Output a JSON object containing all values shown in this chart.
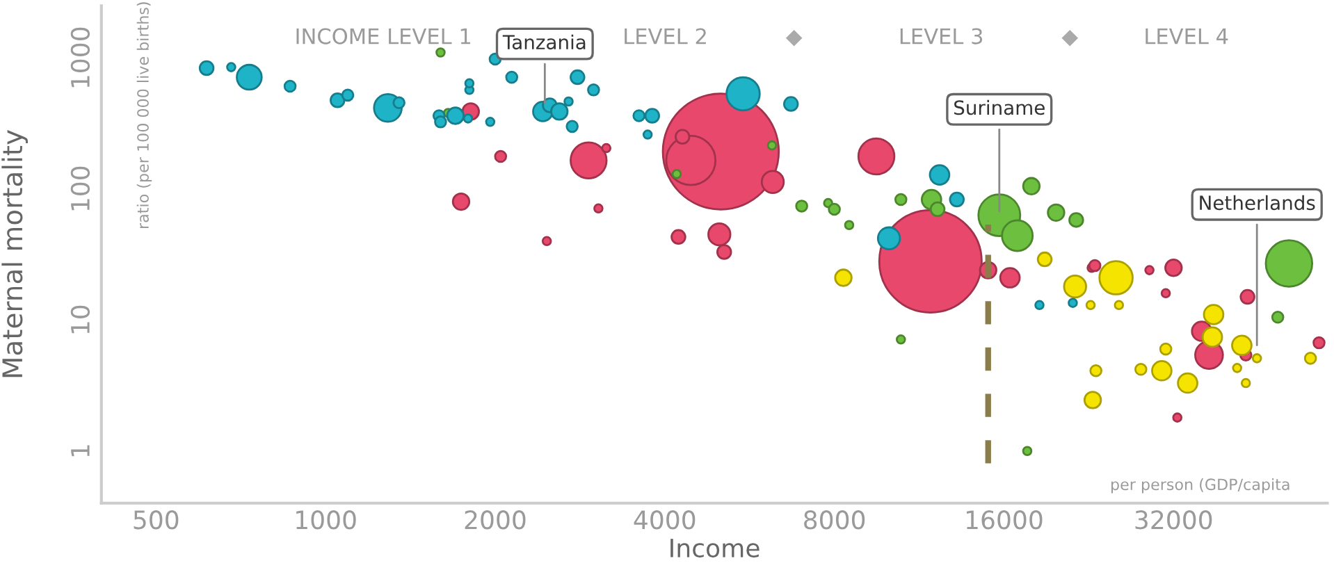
{
  "chart_data": {
    "type": "bubble",
    "xlabel": "Income",
    "ylabel": "Maternal mortality",
    "log": "xy",
    "xlim": [
      400,
      60000
    ],
    "ylim": [
      0.4,
      2500
    ],
    "xticks": [
      500,
      1000,
      2000,
      4000,
      8000,
      16000,
      32000
    ],
    "yticks": [
      1,
      10,
      100,
      1000
    ],
    "grid": false,
    "legend": false,
    "marker": "circle",
    "annotations": [
      "INCOME LEVEL 1",
      "LEVEL 2",
      "LEVEL 3",
      "LEVEL 4",
      "ratio (per 100 000 live births)",
      "per person (GDP/capita",
      {
        "text": "Tanzania",
        "x": 2450,
        "y": 420
      },
      {
        "text": "Suriname",
        "x": 15700,
        "y": 63
      },
      {
        "text": "Netherlands",
        "x": 45000,
        "y": 6
      }
    ],
    "ref_lines": [
      {
        "axis": "x",
        "value": 15000,
        "label": null,
        "color": "#8b7d4a",
        "line_style": "dashed"
      }
    ],
    "series": [
      {
        "color": "#e8486b",
        "x": [
          5030,
          11850,
          4450,
          2930,
          9500,
          1810,
          2045,
          1740,
          3150,
          3050,
          2470,
          4300,
          4230,
          5000,
          5100,
          6220,
          15000,
          16400,
          22900,
          23200,
          32000,
          35900,
          37000,
          43300,
          43000,
          31000,
          58000,
          29000,
          32500
        ],
        "values": [
          193,
          28,
          165,
          165,
          177,
          390,
          177,
          80,
          205,
          71,
          40,
          250,
          43,
          45,
          33,
          113,
          24,
          21,
          25,
          26,
          25,
          8.2,
          5.4,
          15,
          5.4,
          16,
          6.7,
          24,
          1.8
        ],
        "sizes": [
          1,
          0.78,
          0.18,
          0.096,
          0.096,
          0.02,
          0.009,
          0.02,
          0.005,
          0.005,
          0.005,
          0.014,
          0.014,
          0.036,
          0.014,
          0.036,
          0.02,
          0.028,
          0.005,
          0.009,
          0.02,
          0.028,
          0.057,
          0.014,
          0.009,
          0.005,
          0.009,
          0.005,
          0.005
        ]
      },
      {
        "color": "#6cbf3f",
        "x": [
          1650,
          1600,
          4200,
          6200,
          7000,
          7800,
          8000,
          10500,
          11900,
          12200,
          15700,
          16900,
          17900,
          19800,
          21500,
          51300,
          49000,
          8500,
          10500,
          17600
        ],
        "values": [
          380,
          1100,
          130,
          215,
          74,
          78,
          70,
          83,
          83,
          70,
          63,
          44,
          105,
          66,
          58,
          27,
          10.5,
          53,
          7.1,
          1.0
        ],
        "sizes": [
          0.005,
          0.005,
          0.005,
          0.005,
          0.009,
          0.005,
          0.009,
          0.009,
          0.028,
          0.014,
          0.13,
          0.07,
          0.02,
          0.02,
          0.014,
          0.16,
          0.009,
          0.005,
          0.005,
          0.005
        ]
      },
      {
        "color": "#f5e400",
        "x": [
          8300,
          18900,
          21400,
          25300,
          22800,
          25600,
          37700,
          37500,
          42300,
          30500,
          33900,
          23000,
          23300,
          28000,
          41500,
          43000,
          45000,
          56000,
          31000
        ],
        "values": [
          21,
          29,
          18,
          21,
          13,
          13,
          11,
          7.4,
          6.4,
          4.1,
          3.3,
          2.45,
          4.1,
          4.2,
          4.3,
          3.3,
          5.1,
          5.1,
          6.0
        ],
        "sizes": [
          0.02,
          0.014,
          0.036,
          0.082,
          0.005,
          0.005,
          0.028,
          0.028,
          0.028,
          0.028,
          0.028,
          0.02,
          0.009,
          0.009,
          0.005,
          0.005,
          0.005,
          0.009,
          0.009
        ]
      },
      {
        "color": "#1fb3c8",
        "x": [
          615,
          680,
          732,
          865,
          1050,
          1095,
          1290,
          1350,
          1590,
          1600,
          1700,
          1790,
          1800,
          1800,
          1960,
          2000,
          2140,
          2430,
          2500,
          2600,
          2700,
          2740,
          2800,
          2990,
          3600,
          3800,
          3730,
          5510,
          6700,
          12300,
          10000,
          13200,
          21200,
          18500
        ],
        "values": [
          835,
          850,
          712,
          608,
          475,
          520,
          415,
          455,
          362,
          325,
          362,
          345,
          570,
          640,
          325,
          980,
          712,
          390,
          435,
          390,
          465,
          300,
          712,
          570,
          362,
          362,
          260,
          532,
          445,
          128,
          42,
          83,
          13.5,
          13
        ],
        "sizes": [
          0.014,
          0.005,
          0.046,
          0.009,
          0.014,
          0.009,
          0.057,
          0.009,
          0.009,
          0.009,
          0.02,
          0.005,
          0.005,
          0.005,
          0.005,
          0.009,
          0.009,
          0.028,
          0.014,
          0.02,
          0.005,
          0.009,
          0.014,
          0.009,
          0.009,
          0.014,
          0.005,
          0.082,
          0.014,
          0.028,
          0.036,
          0.014,
          0.005,
          0.005
        ]
      }
    ]
  }
}
